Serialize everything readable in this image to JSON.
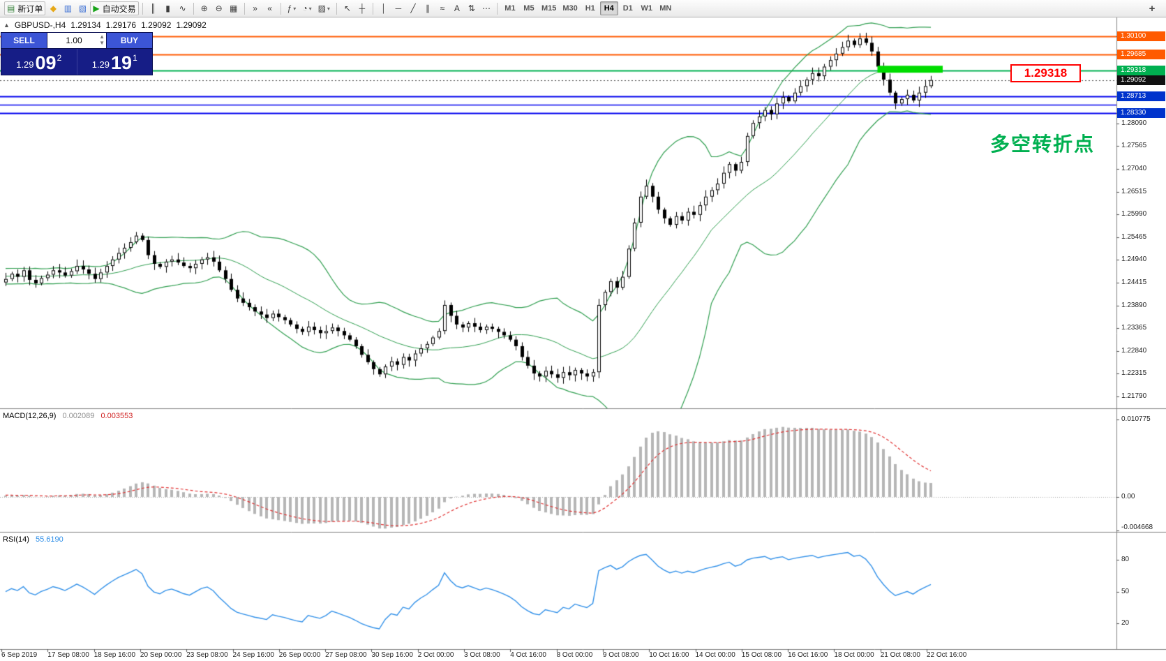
{
  "toolbar": {
    "groups": [
      {
        "buttons": [
          {
            "name": "new-order-button",
            "glyph": "▤",
            "glyph_color": "#2e7d32",
            "label": "新订单"
          },
          {
            "name": "alert-icon",
            "glyph": "◆",
            "glyph_color": "#e6a817"
          },
          {
            "name": "market-watch-icon",
            "glyph": "▥",
            "glyph_color": "#3b6fd4"
          },
          {
            "name": "navigator-icon",
            "glyph": "▧",
            "glyph_color": "#3b6fd4"
          },
          {
            "name": "autotrading-button",
            "glyph": "▶",
            "glyph_color": "#17a317",
            "label": "自动交易"
          }
        ]
      },
      {
        "buttons": [
          {
            "name": "bar-chart-button",
            "glyph": "║"
          },
          {
            "name": "candlestick-button",
            "glyph": "▮"
          },
          {
            "name": "line-chart-button",
            "glyph": "∿"
          }
        ]
      },
      {
        "buttons": [
          {
            "name": "zoom-in-button",
            "glyph": "⊕"
          },
          {
            "name": "zoom-out-button",
            "glyph": "⊖"
          },
          {
            "name": "tile-windows-button",
            "glyph": "▦"
          }
        ]
      },
      {
        "buttons": [
          {
            "name": "auto-scroll-button",
            "glyph": "»"
          },
          {
            "name": "chart-shift-button",
            "glyph": "«"
          }
        ]
      },
      {
        "buttons": [
          {
            "name": "indicators-button",
            "glyph": "ƒ",
            "suffix": "▾"
          },
          {
            "name": "periods-button",
            "glyph": "◔",
            "suffix": "▾"
          },
          {
            "name": "templates-button",
            "glyph": "▨",
            "suffix": "▾"
          }
        ]
      },
      {
        "buttons": [
          {
            "name": "cursor-button",
            "glyph": "↖"
          },
          {
            "name": "crosshair-button",
            "glyph": "┼"
          }
        ]
      },
      {
        "buttons": [
          {
            "name": "vertical-line-button",
            "glyph": "│"
          },
          {
            "name": "horizontal-line-button",
            "glyph": "─"
          },
          {
            "name": "trendline-button",
            "glyph": "╱"
          },
          {
            "name": "channel-button",
            "glyph": "∥"
          },
          {
            "name": "fibonacci-button",
            "glyph": "≈"
          },
          {
            "name": "text-button",
            "glyph": "A"
          },
          {
            "name": "arrow-tools-button",
            "glyph": "⇅"
          },
          {
            "name": "more-tools-button",
            "glyph": "⋯"
          }
        ]
      }
    ],
    "timeframes": [
      "M1",
      "M5",
      "M15",
      "M30",
      "H1",
      "H4",
      "D1",
      "W1",
      "MN"
    ],
    "active_timeframe": "H4",
    "add_button": {
      "name": "add-chart-button",
      "glyph": "+"
    }
  },
  "chart": {
    "symbol_label": "GBPUSD-,H4",
    "collapse_arrow": "▲",
    "ohlc": {
      "open": "1.29134",
      "high": "1.29176",
      "low": "1.29092",
      "close": "1.29092"
    },
    "one_click": {
      "sell_label": "SELL",
      "buy_label": "BUY",
      "volume": "1.00",
      "sell_price_small": "1.29",
      "sell_price_big": "09",
      "sell_price_sup": "2",
      "buy_price_small": "1.29",
      "buy_price_big": "19",
      "buy_price_sup": "1"
    },
    "annotation": {
      "text": "多空转折点",
      "color": "#00b050"
    },
    "price_label_box": {
      "text": "1.29318",
      "color": "#ff0000"
    },
    "tags": [
      {
        "text": "1.30100",
        "price": 1.301,
        "bg": "#ff5a00"
      },
      {
        "text": "1.29685",
        "price": 1.29685,
        "bg": "#ff5a00"
      },
      {
        "text": "1.29318",
        "price": 1.29318,
        "bg": "#00b050"
      },
      {
        "text": "1.29092",
        "price": 1.29092,
        "bg": "#111111"
      },
      {
        "text": "1.28713",
        "price": 1.28713,
        "bg": "#0033cc"
      },
      {
        "text": "1.28330",
        "price": 1.2833,
        "bg": "#0033cc"
      }
    ]
  },
  "indicators": {
    "macd": {
      "label": "MACD(12,26,9)",
      "v1": "0.002089",
      "v2": "0.003553"
    },
    "rsi": {
      "label": "RSI(14)",
      "value": "55.6190"
    }
  },
  "axes": {
    "price_ticks": [
      "1.28090",
      "1.27565",
      "1.27040",
      "1.26515",
      "1.25990",
      "1.25465",
      "1.24940",
      "1.24415",
      "1.23890",
      "1.23365",
      "1.22840",
      "1.22315",
      "1.21790"
    ],
    "macd_ticks": [
      {
        "text": "0.010775",
        "value": 0.010775
      },
      {
        "text": "0.00",
        "value": 0
      },
      {
        "text": "-0.004668",
        "value": -0.004668
      }
    ],
    "rsi_ticks": [
      {
        "text": "80",
        "value": 80
      },
      {
        "text": "50",
        "value": 50
      },
      {
        "text": "20",
        "value": 20
      }
    ],
    "dates": [
      "6 Sep 2019",
      "17 Sep 08:00",
      "18 Sep 16:00",
      "20 Sep 00:00",
      "23 Sep 08:00",
      "24 Sep 16:00",
      "26 Sep 00:00",
      "27 Sep 08:00",
      "30 Sep 16:00",
      "2 Oct 00:00",
      "3 Oct 08:00",
      "4 Oct 16:00",
      "8 Oct 00:00",
      "9 Oct 08:00",
      "10 Oct 16:00",
      "14 Oct 00:00",
      "15 Oct 08:00",
      "16 Oct 16:00",
      "18 Oct 00:00",
      "21 Oct 08:00",
      "22 Oct 16:00"
    ]
  },
  "chart_data": {
    "type": "candlestick",
    "symbol": "GBPUSD-",
    "timeframe": "H4",
    "visible_price_range": [
      1.2179,
      1.301
    ],
    "current_price": 1.29092,
    "seed_closes": [
      1.2445,
      1.246,
      1.245,
      1.247,
      1.244,
      1.2455,
      1.2465,
      1.2445,
      1.246,
      1.245,
      1.2472,
      1.2448,
      1.2462,
      1.2455,
      1.2468,
      1.2442,
      1.2458,
      1.2465,
      1.2452,
      1.246
    ],
    "closes": [
      1.245,
      1.2462,
      1.2455,
      1.247,
      1.2448,
      1.244,
      1.2452,
      1.246,
      1.247,
      1.2465,
      1.2458,
      1.2468,
      1.248,
      1.2472,
      1.2462,
      1.245,
      1.2465,
      1.248,
      1.2495,
      1.251,
      1.2522,
      1.2535,
      1.255,
      1.254,
      1.2505,
      1.2485,
      1.2478,
      1.249,
      1.2495,
      1.2488,
      1.248,
      1.2475,
      1.2485,
      1.2495,
      1.25,
      1.249,
      1.247,
      1.245,
      1.2425,
      1.2405,
      1.2395,
      1.2385,
      1.2375,
      1.2368,
      1.236,
      1.237,
      1.2362,
      1.2355,
      1.2345,
      1.2335,
      1.2328,
      1.234,
      1.2332,
      1.2325,
      1.233,
      1.2338,
      1.233,
      1.232,
      1.231,
      1.2295,
      1.2275,
      1.2258,
      1.2242,
      1.223,
      1.2248,
      1.226,
      1.2252,
      1.227,
      1.2262,
      1.2278,
      1.229,
      1.23,
      1.2315,
      1.233,
      1.239,
      1.2365,
      1.2345,
      1.2338,
      1.2348,
      1.234,
      1.2332,
      1.234,
      1.2335,
      1.2328,
      1.232,
      1.231,
      1.2295,
      1.227,
      1.225,
      1.2232,
      1.2225,
      1.2238,
      1.223,
      1.2222,
      1.2235,
      1.2228,
      1.224,
      1.2232,
      1.2225,
      1.2235,
      1.239,
      1.242,
      1.2445,
      1.243,
      1.2455,
      1.252,
      1.258,
      1.264,
      1.2665,
      1.264,
      1.261,
      1.259,
      1.2575,
      1.2595,
      1.2585,
      1.2605,
      1.2598,
      1.262,
      1.264,
      1.2655,
      1.267,
      1.2695,
      1.2715,
      1.27,
      1.272,
      1.278,
      1.281,
      1.2825,
      1.284,
      1.283,
      1.2855,
      1.287,
      1.286,
      1.288,
      1.2895,
      1.291,
      1.2925,
      1.2918,
      1.294,
      1.2955,
      1.297,
      1.2985,
      1.3,
      1.299,
      1.3005,
      1.2995,
      1.2975,
      1.294,
      1.291,
      1.288,
      1.2855,
      1.2865,
      1.2875,
      1.2862,
      1.288,
      1.2895,
      1.2909
    ],
    "bollinger": {
      "period": 20,
      "deviation": 2,
      "color": "#2f9e4f"
    },
    "macd": {
      "fast": 12,
      "slow": 26,
      "signal": 9,
      "histogram_color": "#b6b6b6",
      "signal_color": "#e03030",
      "axis_range": [
        -0.004668,
        0.010775
      ]
    },
    "rsi": {
      "period": 14,
      "color": "#2f8fe8",
      "axis_levels": [
        20,
        50,
        80
      ]
    },
    "hlines": [
      {
        "price": 1.301,
        "color": "#ff5a00",
        "width": 2
      },
      {
        "price": 1.29685,
        "color": "#ff5a00",
        "width": 2
      },
      {
        "price": 1.29318,
        "color": "#00b050",
        "width": 2
      },
      {
        "price": 1.28713,
        "color": "#0000ee",
        "width": 2
      },
      {
        "price": 1.2852,
        "color": "#0000ee",
        "width": 1.5
      },
      {
        "price": 1.2833,
        "color": "#0000ee",
        "width": 2
      }
    ],
    "green_rect": {
      "from_candle": 147,
      "to_candle": 158,
      "price_top": 1.2942,
      "price_bottom": 1.2926,
      "color": "#00dd00"
    }
  }
}
